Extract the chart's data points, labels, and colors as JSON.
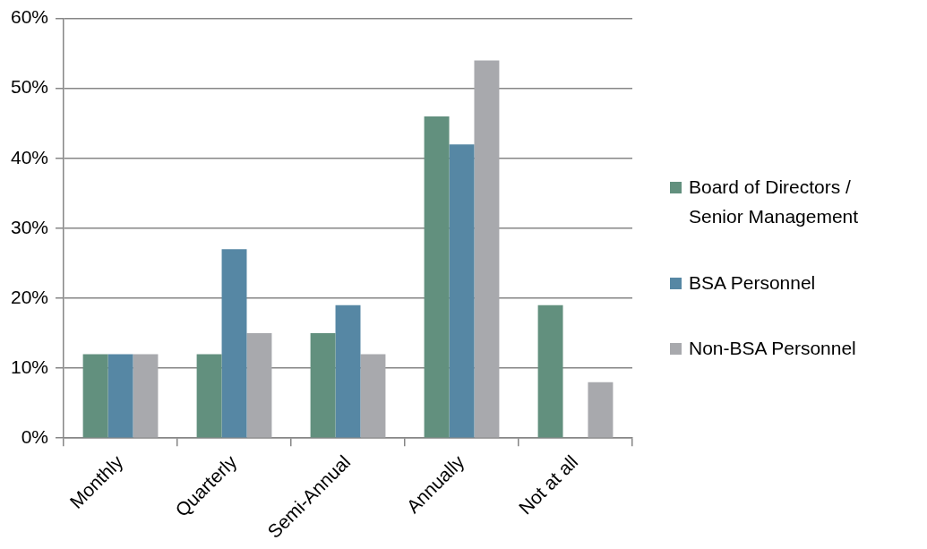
{
  "chart_data": {
    "type": "bar",
    "categories": [
      "Monthly",
      "Quarterly",
      "Semi-Annual",
      "Annually",
      "Not at all"
    ],
    "series": [
      {
        "name": "Board of Directors / Senior Management",
        "color": "#62907e",
        "values": [
          12,
          12,
          15,
          46,
          19
        ]
      },
      {
        "name": "BSA Personnel",
        "color": "#5687a4",
        "values": [
          12,
          27,
          19,
          42,
          null
        ]
      },
      {
        "name": "Non-BSA Personnel",
        "color": "#a8a9ad",
        "values": [
          12,
          15,
          12,
          54,
          8
        ]
      }
    ],
    "ylim": [
      0,
      60
    ],
    "yticks": [
      {
        "value": 0,
        "label": "0%"
      },
      {
        "value": 10,
        "label": "10%"
      },
      {
        "value": 20,
        "label": "20%"
      },
      {
        "value": 30,
        "label": "30%"
      },
      {
        "value": 40,
        "label": "40%"
      },
      {
        "value": 50,
        "label": "50%"
      },
      {
        "value": 60,
        "label": "60%"
      }
    ],
    "grid": "y",
    "legend": "right"
  }
}
